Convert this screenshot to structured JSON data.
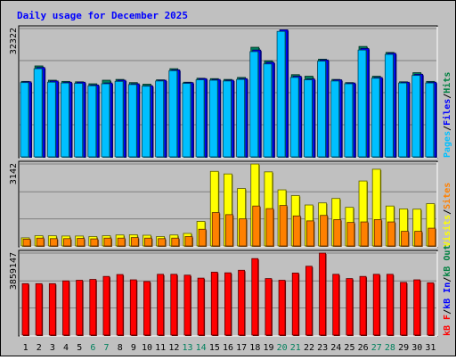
{
  "chart_data": {
    "type": "bar",
    "title": "Daily usage for December 2025",
    "categories": [
      "1",
      "2",
      "3",
      "4",
      "5",
      "6",
      "7",
      "8",
      "9",
      "10",
      "11",
      "12",
      "13",
      "14",
      "15",
      "16",
      "17",
      "18",
      "19",
      "20",
      "21",
      "22",
      "23",
      "24",
      "25",
      "26",
      "27",
      "28",
      "29",
      "30",
      "31"
    ],
    "weekend_days": [
      "6",
      "7",
      "13",
      "14",
      "20",
      "21",
      "27",
      "28"
    ],
    "panels": [
      {
        "name": "hits-files-pages",
        "ymax_label": "32322",
        "ylim": [
          0,
          32322
        ],
        "legend": [
          {
            "label": "Pages",
            "color": "#00c0ff"
          },
          {
            "label": "Files",
            "color": "#0000ff"
          },
          {
            "label": "Hits",
            "color": "#008040"
          }
        ],
        "legend_sep": "/",
        "series": [
          {
            "name": "Hits",
            "color": "#00805c",
            "values": [
              19000,
              22900,
              19300,
              19000,
              18900,
              18400,
              19300,
              19500,
              18700,
              18300,
              19400,
              22200,
              18800,
              19800,
              19700,
              19500,
              20000,
              27600,
              24200,
              20100,
              20700,
              20300,
              24600,
              19500,
              18700,
              27800,
              20300,
              26300,
              18900,
              21200,
              19000
            ]
          },
          {
            "name": "Files",
            "color": "#0000ff",
            "values": [
              18900,
              22500,
              19100,
              18800,
              18800,
              18100,
              18600,
              19300,
              18400,
              17900,
              19300,
              21900,
              18700,
              19700,
              19500,
              19300,
              19700,
              26900,
              23800,
              32000,
              20300,
              19600,
              24400,
              19400,
              18600,
              27300,
              20000,
              26100,
              18800,
              20800,
              18800
            ]
          },
          {
            "name": "Pages",
            "color": "#00c0ff",
            "values": [
              18700,
              22200,
              18800,
              18600,
              18500,
              17900,
              18400,
              19000,
              18200,
              17800,
              19100,
              21700,
              18500,
              19400,
              19300,
              19100,
              19500,
              26500,
              23400,
              31600,
              20000,
              19400,
              24100,
              19100,
              18400,
              26900,
              19800,
              25800,
              18600,
              20500,
              18600
            ]
          }
        ]
      },
      {
        "name": "visits-sites",
        "ymax_label": "3142",
        "ylim": [
          0,
          3142
        ],
        "legend": [
          {
            "label": "Visits",
            "color": "#ffff00"
          },
          {
            "label": "Sites",
            "color": "#ff8000"
          }
        ],
        "legend_sep": "/",
        "series": [
          {
            "name": "Visits",
            "color": "#ffff00",
            "values": [
              310,
              390,
              390,
              380,
              380,
              360,
              390,
              420,
              430,
              410,
              360,
              420,
              480,
              940,
              2860,
              2760,
              2200,
              3140,
              2840,
              2150,
              1930,
              1570,
              1650,
              1820,
              1480,
              2490,
              2940,
              1530,
              1420,
              1410,
              1620
            ]
          },
          {
            "name": "Sites",
            "color": "#ff8000",
            "values": [
              260,
              300,
              280,
              280,
              290,
              270,
              300,
              300,
              320,
              300,
              280,
              300,
              360,
              640,
              1280,
              1200,
              1040,
              1530,
              1430,
              1550,
              1150,
              960,
              1170,
              1010,
              900,
              920,
              1010,
              920,
              560,
              560,
              680
            ]
          }
        ]
      },
      {
        "name": "kbytes",
        "ymax_label": "3859147",
        "ylim": [
          0,
          3859147
        ],
        "legend": [
          {
            "label": "kB F",
            "color": "#ff0000"
          },
          {
            "label": "kB In",
            "color": "#0000ff"
          },
          {
            "label": "kB Out",
            "color": "#008040"
          }
        ],
        "legend_sep": "/",
        "series": [
          {
            "name": "kB F",
            "color": "#ff0000",
            "values": [
              2420000,
              2420000,
              2420000,
              2550000,
              2580000,
              2620000,
              2760000,
              2850000,
              2600000,
              2520000,
              2860000,
              2860000,
              2820000,
              2680000,
              2960000,
              2930000,
              3050000,
              3600000,
              2660000,
              2580000,
              2920000,
              3240000,
              3859147,
              2860000,
              2660000,
              2760000,
              2860000,
              2860000,
              2480000,
              2600000,
              2460000
            ]
          }
        ]
      }
    ]
  }
}
